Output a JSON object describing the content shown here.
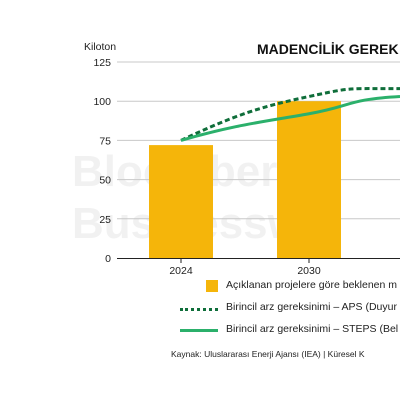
{
  "chart_data": {
    "type": "bar",
    "title": "MADENCİLİK GEREK",
    "ylabel": "Kiloton",
    "categories": [
      "2024",
      "2030"
    ],
    "ylim": [
      0,
      125
    ],
    "yticks": [
      0,
      25,
      50,
      75,
      100,
      125
    ],
    "grid": true,
    "series": [
      {
        "name": "Açıklanan projelere göre beklenen m",
        "type": "bar",
        "values": [
          72,
          100
        ],
        "color": "#f5b50a"
      },
      {
        "name": "Birincil arz gereksinimi – APS (Duyur",
        "type": "line",
        "style": "dotted",
        "values": [
          75,
          103
        ],
        "end_value": 108,
        "color": "#0f6e3a"
      },
      {
        "name": "Birincil arz gereksinimi – STEPS (Bel",
        "type": "line",
        "style": "solid",
        "values": [
          75,
          92
        ],
        "end_value": 103,
        "color": "#2bb06b"
      }
    ],
    "legend_position": "bottom"
  },
  "watermark": [
    "Bloomberg",
    "Businesswo"
  ],
  "source": "Kaynak: Uluslararası Enerji Ajansı (IEA) | Küresel K"
}
